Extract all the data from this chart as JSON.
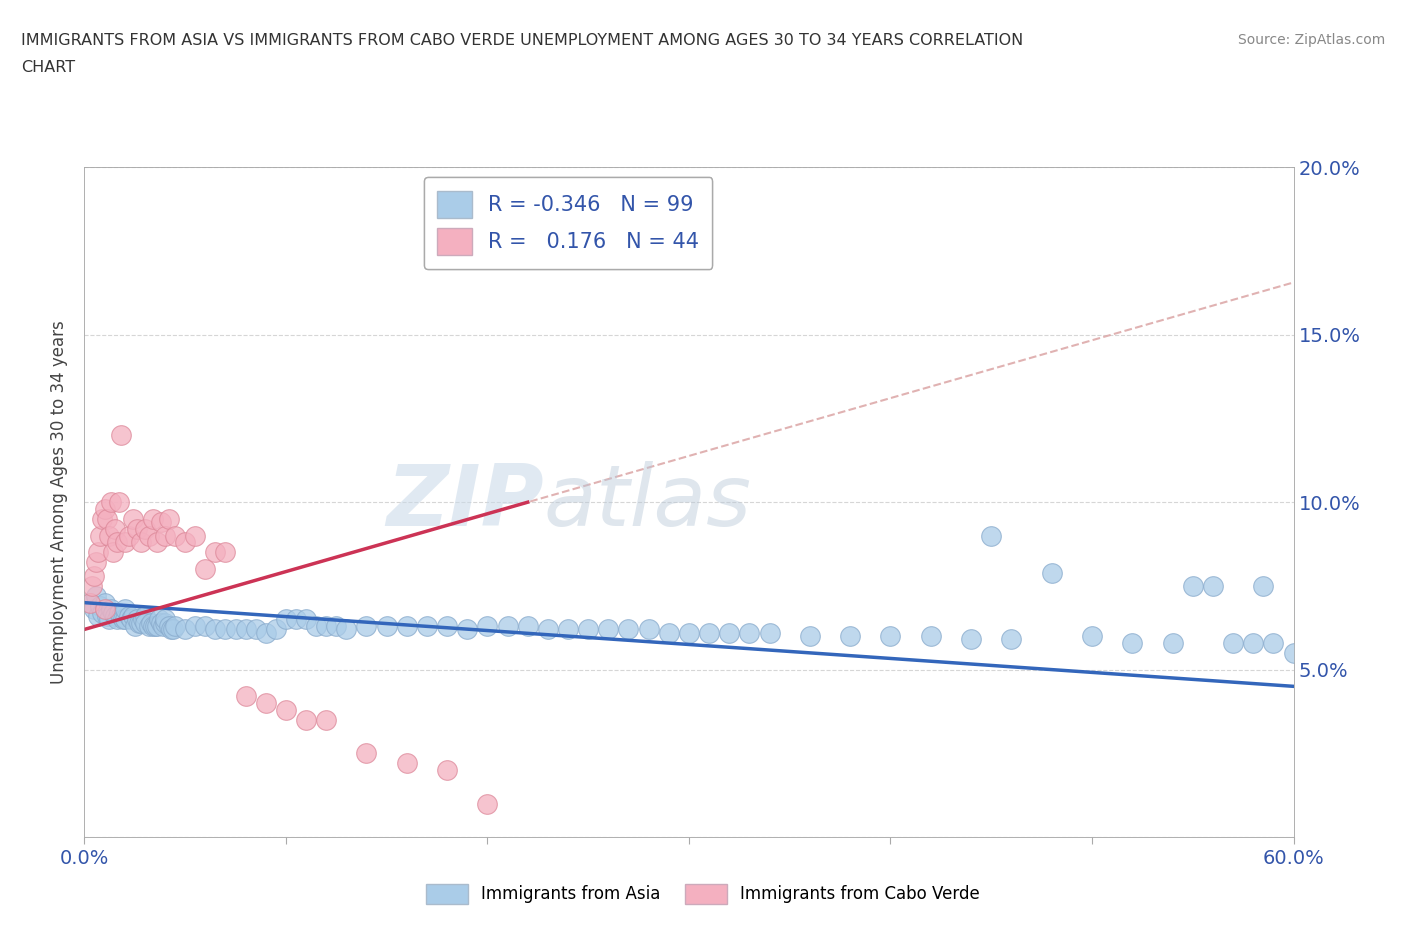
{
  "title_line1": "IMMIGRANTS FROM ASIA VS IMMIGRANTS FROM CABO VERDE UNEMPLOYMENT AMONG AGES 30 TO 34 YEARS CORRELATION",
  "title_line2": "CHART",
  "source": "Source: ZipAtlas.com",
  "ylabel": "Unemployment Among Ages 30 to 34 years",
  "xlim": [
    0.0,
    0.6
  ],
  "ylim": [
    0.0,
    0.2
  ],
  "xticks": [
    0.0,
    0.1,
    0.2,
    0.3,
    0.4,
    0.5,
    0.6
  ],
  "yticks": [
    0.0,
    0.05,
    0.1,
    0.15,
    0.2
  ],
  "xtick_labels": [
    "0.0%",
    "",
    "",
    "",
    "",
    "",
    "60.0%"
  ],
  "ytick_labels_right": [
    "",
    "5.0%",
    "10.0%",
    "15.0%",
    "20.0%"
  ],
  "asia_color": "#aacce8",
  "asia_edge_color": "#88aacc",
  "cabo_color": "#f4b0c0",
  "cabo_edge_color": "#dd8899",
  "trend_asia_color": "#3366bb",
  "trend_cabo_solid_color": "#cc3355",
  "trend_cabo_dashed_color": "#ddaaaa",
  "R_asia": -0.346,
  "N_asia": 99,
  "R_cabo": 0.176,
  "N_cabo": 44,
  "watermark_zip": "ZIP",
  "watermark_atlas": "atlas",
  "legend_label_asia": "Immigrants from Asia",
  "legend_label_cabo": "Immigrants from Cabo Verde",
  "asia_x": [
    0.003,
    0.005,
    0.006,
    0.007,
    0.008,
    0.009,
    0.01,
    0.01,
    0.011,
    0.012,
    0.013,
    0.014,
    0.015,
    0.016,
    0.017,
    0.018,
    0.019,
    0.02,
    0.02,
    0.022,
    0.023,
    0.024,
    0.025,
    0.026,
    0.027,
    0.028,
    0.029,
    0.03,
    0.03,
    0.032,
    0.033,
    0.034,
    0.035,
    0.036,
    0.037,
    0.038,
    0.039,
    0.04,
    0.04,
    0.042,
    0.043,
    0.044,
    0.045,
    0.05,
    0.055,
    0.06,
    0.065,
    0.07,
    0.075,
    0.08,
    0.085,
    0.09,
    0.095,
    0.1,
    0.105,
    0.11,
    0.115,
    0.12,
    0.125,
    0.13,
    0.14,
    0.15,
    0.16,
    0.17,
    0.18,
    0.19,
    0.2,
    0.21,
    0.22,
    0.23,
    0.24,
    0.25,
    0.26,
    0.27,
    0.28,
    0.29,
    0.3,
    0.31,
    0.32,
    0.33,
    0.34,
    0.36,
    0.38,
    0.4,
    0.42,
    0.44,
    0.45,
    0.46,
    0.48,
    0.5,
    0.52,
    0.54,
    0.55,
    0.56,
    0.57,
    0.58,
    0.585,
    0.59,
    0.6
  ],
  "asia_y": [
    0.07,
    0.068,
    0.072,
    0.066,
    0.069,
    0.067,
    0.068,
    0.07,
    0.066,
    0.065,
    0.068,
    0.067,
    0.066,
    0.065,
    0.067,
    0.066,
    0.065,
    0.065,
    0.068,
    0.066,
    0.065,
    0.066,
    0.063,
    0.065,
    0.064,
    0.064,
    0.065,
    0.066,
    0.064,
    0.063,
    0.064,
    0.063,
    0.063,
    0.063,
    0.065,
    0.064,
    0.063,
    0.064,
    0.065,
    0.063,
    0.062,
    0.062,
    0.063,
    0.062,
    0.063,
    0.063,
    0.062,
    0.062,
    0.062,
    0.062,
    0.062,
    0.061,
    0.062,
    0.065,
    0.065,
    0.065,
    0.063,
    0.063,
    0.063,
    0.062,
    0.063,
    0.063,
    0.063,
    0.063,
    0.063,
    0.062,
    0.063,
    0.063,
    0.063,
    0.062,
    0.062,
    0.062,
    0.062,
    0.062,
    0.062,
    0.061,
    0.061,
    0.061,
    0.061,
    0.061,
    0.061,
    0.06,
    0.06,
    0.06,
    0.06,
    0.059,
    0.09,
    0.059,
    0.079,
    0.06,
    0.058,
    0.058,
    0.075,
    0.075,
    0.058,
    0.058,
    0.075,
    0.058,
    0.055
  ],
  "cabo_x": [
    0.003,
    0.004,
    0.005,
    0.006,
    0.007,
    0.008,
    0.009,
    0.01,
    0.01,
    0.011,
    0.012,
    0.013,
    0.014,
    0.015,
    0.016,
    0.017,
    0.018,
    0.02,
    0.022,
    0.024,
    0.026,
    0.028,
    0.03,
    0.032,
    0.034,
    0.036,
    0.038,
    0.04,
    0.042,
    0.045,
    0.05,
    0.055,
    0.06,
    0.065,
    0.07,
    0.08,
    0.09,
    0.1,
    0.11,
    0.12,
    0.14,
    0.16,
    0.18,
    0.2
  ],
  "cabo_y": [
    0.07,
    0.075,
    0.078,
    0.082,
    0.085,
    0.09,
    0.095,
    0.098,
    0.068,
    0.095,
    0.09,
    0.1,
    0.085,
    0.092,
    0.088,
    0.1,
    0.12,
    0.088,
    0.09,
    0.095,
    0.092,
    0.088,
    0.092,
    0.09,
    0.095,
    0.088,
    0.094,
    0.09,
    0.095,
    0.09,
    0.088,
    0.09,
    0.08,
    0.085,
    0.085,
    0.042,
    0.04,
    0.038,
    0.035,
    0.035,
    0.025,
    0.022,
    0.02,
    0.01
  ]
}
